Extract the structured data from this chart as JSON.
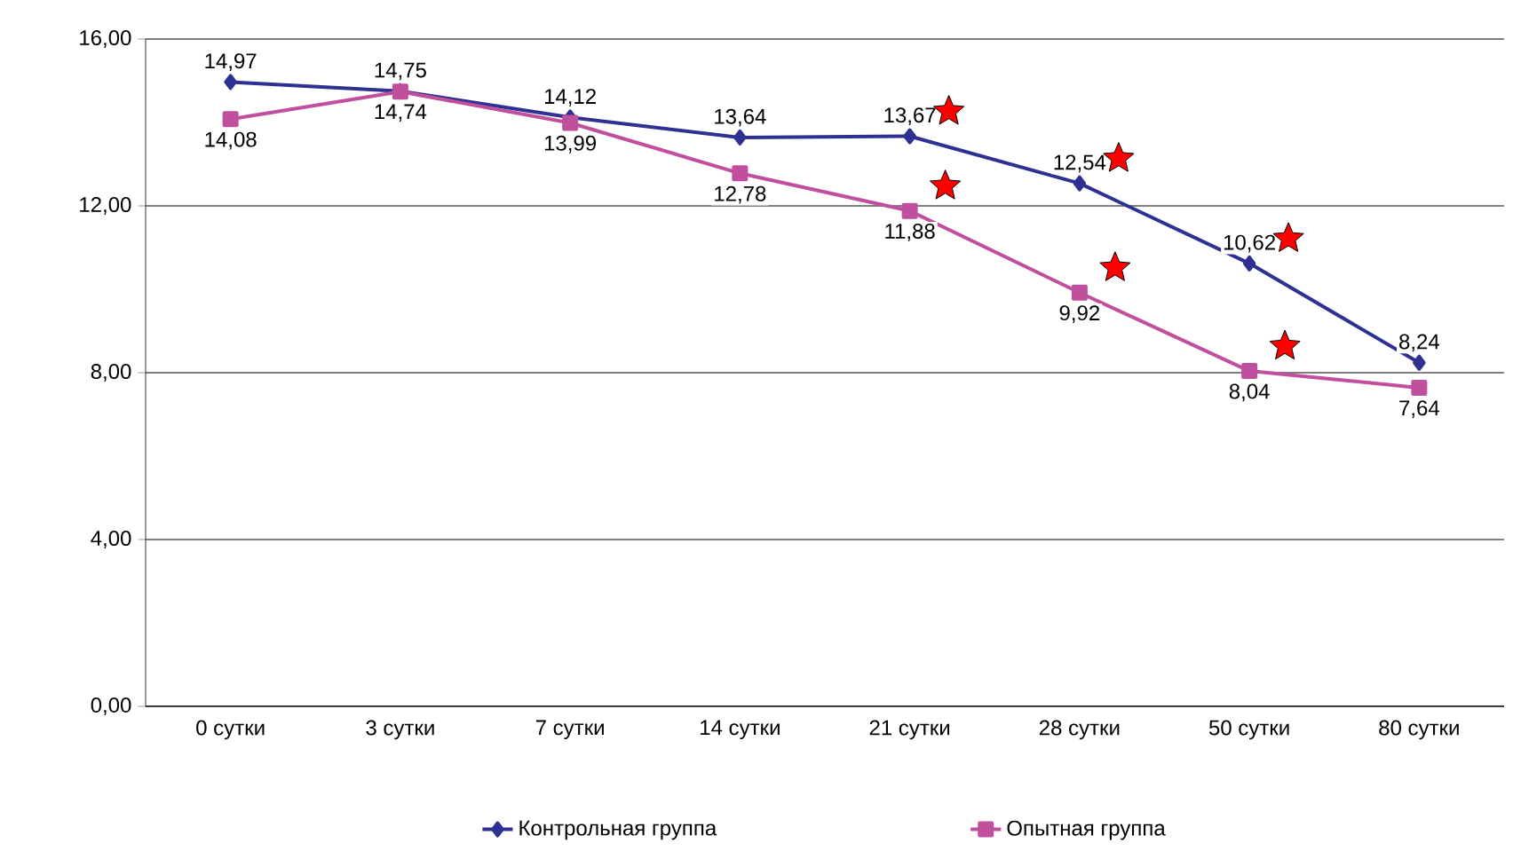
{
  "chart_data": {
    "type": "line",
    "categories": [
      "0 сутки",
      "3 сутки",
      "7 сутки",
      "14 сутки",
      "21 сутки",
      "28 сутки",
      "50 сутки",
      "80 сутки"
    ],
    "series": [
      {
        "name": "Контрольная группа",
        "color": "#2e3192",
        "marker": "diamond",
        "values": [
          14.97,
          14.75,
          14.12,
          13.64,
          13.67,
          12.54,
          10.62,
          8.24
        ],
        "value_labels": [
          "14,97",
          "14,75",
          "14,12",
          "13,64",
          "13,67",
          "12,54",
          "10,62",
          "8,24"
        ]
      },
      {
        "name": "Опытная группа",
        "color": "#c0509e",
        "marker": "square",
        "values": [
          14.08,
          14.74,
          13.99,
          12.78,
          11.88,
          9.92,
          8.04,
          7.64
        ],
        "value_labels": [
          "14,08",
          "14,74",
          "13,99",
          "12,78",
          "11,88",
          "9,92",
          "8,04",
          "7,64"
        ]
      }
    ],
    "ylim": [
      0,
      16
    ],
    "yticks": [
      {
        "value": 0,
        "label": "0,00"
      },
      {
        "value": 4,
        "label": "4,00"
      },
      {
        "value": 8,
        "label": "8,00"
      },
      {
        "value": 12,
        "label": "12,00"
      },
      {
        "value": 16,
        "label": "16,00"
      }
    ],
    "grid": "y",
    "legend": "bottom"
  }
}
